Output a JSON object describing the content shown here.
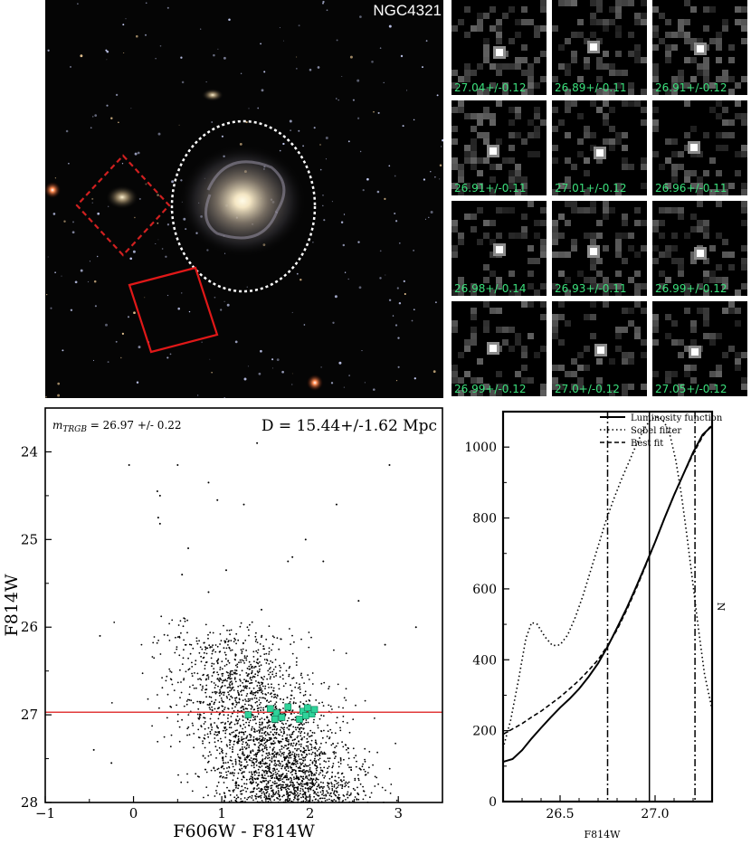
{
  "sky_panel": {
    "title": "NGC4321"
  },
  "stamps": [
    "27.04+/-0.12",
    "26.89+/-0.11",
    "26.91+/-0.12",
    "26.91+/-0.11",
    "27.01+/-0.12",
    "26.96+/-0.11",
    "26.98+/-0.14",
    "26.93+/-0.11",
    "26.99+/-0.12",
    "26.99+/-0.12",
    "27.0+/-0.12",
    "27.05+/-0.12"
  ],
  "chart_data": [
    {
      "type": "scatter",
      "annotation_left_prefix": "m",
      "annotation_left_sub": "TRGB",
      "annotation_left_value": " = 26.97 +/- 0.22",
      "annotation_right": "D = 15.44+/-1.62 Mpc",
      "xlabel": "F606W - F814W",
      "ylabel": "F814W",
      "xlim": [
        -1,
        3.5
      ],
      "ylim": [
        28,
        23.5
      ],
      "y_inverted": true,
      "xticks": [
        -1,
        0,
        1,
        2,
        3
      ],
      "yticks": [
        24,
        25,
        26,
        27,
        28
      ],
      "trgb_line": 26.97,
      "trgb_line_color": "#e23a3a",
      "point_color": "#000000",
      "highlight_color": "#2fd39a",
      "highlighted_stars": [
        {
          "x": 1.3,
          "y": 27.0
        },
        {
          "x": 1.55,
          "y": 26.93
        },
        {
          "x": 1.62,
          "y": 26.98
        },
        {
          "x": 1.68,
          "y": 27.03
        },
        {
          "x": 1.75,
          "y": 26.91
        },
        {
          "x": 1.6,
          "y": 27.05
        },
        {
          "x": 1.92,
          "y": 26.96
        },
        {
          "x": 1.97,
          "y": 26.92
        },
        {
          "x": 2.02,
          "y": 26.99
        },
        {
          "x": 1.88,
          "y": 27.05
        },
        {
          "x": 1.95,
          "y": 27.01
        },
        {
          "x": 2.05,
          "y": 26.94
        }
      ],
      "bright_stars": [
        {
          "x": 1.4,
          "y": 23.9
        },
        {
          "x": 0.5,
          "y": 24.15
        },
        {
          "x": 2.9,
          "y": 24.15
        },
        {
          "x": 0.85,
          "y": 24.35
        },
        {
          "x": 0.95,
          "y": 24.55
        },
        {
          "x": -0.05,
          "y": 24.15
        },
        {
          "x": 0.27,
          "y": 24.45
        },
        {
          "x": 0.3,
          "y": 24.5
        },
        {
          "x": 0.28,
          "y": 24.75
        },
        {
          "x": 0.3,
          "y": 24.82
        },
        {
          "x": 1.25,
          "y": 24.6
        },
        {
          "x": 2.3,
          "y": 24.6
        },
        {
          "x": 0.62,
          "y": 25.1
        },
        {
          "x": 0.55,
          "y": 25.4
        },
        {
          "x": 1.8,
          "y": 25.2
        },
        {
          "x": 1.75,
          "y": 25.25
        },
        {
          "x": 1.95,
          "y": 25.0
        },
        {
          "x": 2.15,
          "y": 25.25
        },
        {
          "x": 1.05,
          "y": 25.35
        },
        {
          "x": -0.38,
          "y": 26.1
        },
        {
          "x": 0.85,
          "y": 25.6
        },
        {
          "x": 1.45,
          "y": 25.8
        },
        {
          "x": 2.55,
          "y": 25.7
        },
        {
          "x": -0.45,
          "y": 27.4
        },
        {
          "x": -0.25,
          "y": 27.55
        },
        {
          "x": 3.2,
          "y": 26.0
        },
        {
          "x": 2.85,
          "y": 26.2
        }
      ],
      "population": {
        "n": 2600,
        "seed": 7,
        "x_center": 1.55,
        "x_spread": 0.42,
        "x_slope": 0.45,
        "y_min": 25.85,
        "y_max": 28.0
      }
    },
    {
      "type": "line",
      "xlabel": "F814W",
      "ylabel": "N",
      "xlim": [
        26.2,
        27.3
      ],
      "ylim": [
        0,
        1100
      ],
      "xticks": [
        26.5,
        27.0
      ],
      "yticks": [
        0,
        200,
        400,
        600,
        800,
        1000
      ],
      "legend_position": "top-right",
      "series": [
        {
          "name": "Luminosity function",
          "style": "solid",
          "x": [
            26.2,
            26.25,
            26.3,
            26.35,
            26.4,
            26.45,
            26.5,
            26.55,
            26.6,
            26.65,
            26.7,
            26.75,
            26.8,
            26.85,
            26.9,
            26.95,
            27.0,
            27.05,
            27.1,
            27.15,
            27.2,
            27.25,
            27.3
          ],
          "y": [
            112,
            120,
            145,
            178,
            208,
            237,
            265,
            290,
            318,
            352,
            390,
            437,
            490,
            545,
            605,
            668,
            732,
            800,
            865,
            925,
            985,
            1035,
            1060
          ]
        },
        {
          "name": "Sobel filter",
          "style": "dotted",
          "x": [
            26.2,
            26.24,
            26.28,
            26.32,
            26.35,
            26.38,
            26.42,
            26.46,
            26.5,
            26.54,
            26.58,
            26.62,
            26.66,
            26.7,
            26.74,
            26.78,
            26.82,
            26.86,
            26.9,
            26.94,
            26.98,
            27.02,
            27.05,
            27.08,
            27.11,
            27.14,
            27.17,
            27.2,
            27.23,
            27.26,
            27.3
          ],
          "y": [
            150,
            230,
            340,
            460,
            505,
            500,
            465,
            440,
            442,
            470,
            520,
            580,
            650,
            720,
            790,
            850,
            905,
            955,
            1005,
            1050,
            1080,
            1085,
            1070,
            1030,
            960,
            860,
            740,
            610,
            480,
            360,
            260
          ]
        },
        {
          "name": "Best fit",
          "style": "dashed",
          "x": [
            26.2,
            26.25,
            26.3,
            26.35,
            26.4,
            26.45,
            26.5,
            26.55,
            26.6,
            26.65,
            26.7,
            26.75,
            26.8,
            26.85,
            26.9,
            26.95,
            27.0,
            27.05,
            27.1,
            27.15,
            27.2,
            27.25,
            27.3
          ],
          "y": [
            190,
            205,
            220,
            238,
            255,
            275,
            295,
            318,
            342,
            370,
            400,
            440,
            485,
            540,
            600,
            665,
            732,
            800,
            865,
            925,
            980,
            1030,
            1065
          ]
        }
      ],
      "vlines": [
        {
          "x": 26.75,
          "style": "dashdot"
        },
        {
          "x": 26.97,
          "style": "solid"
        },
        {
          "x": 27.21,
          "style": "dashdot"
        }
      ]
    }
  ]
}
